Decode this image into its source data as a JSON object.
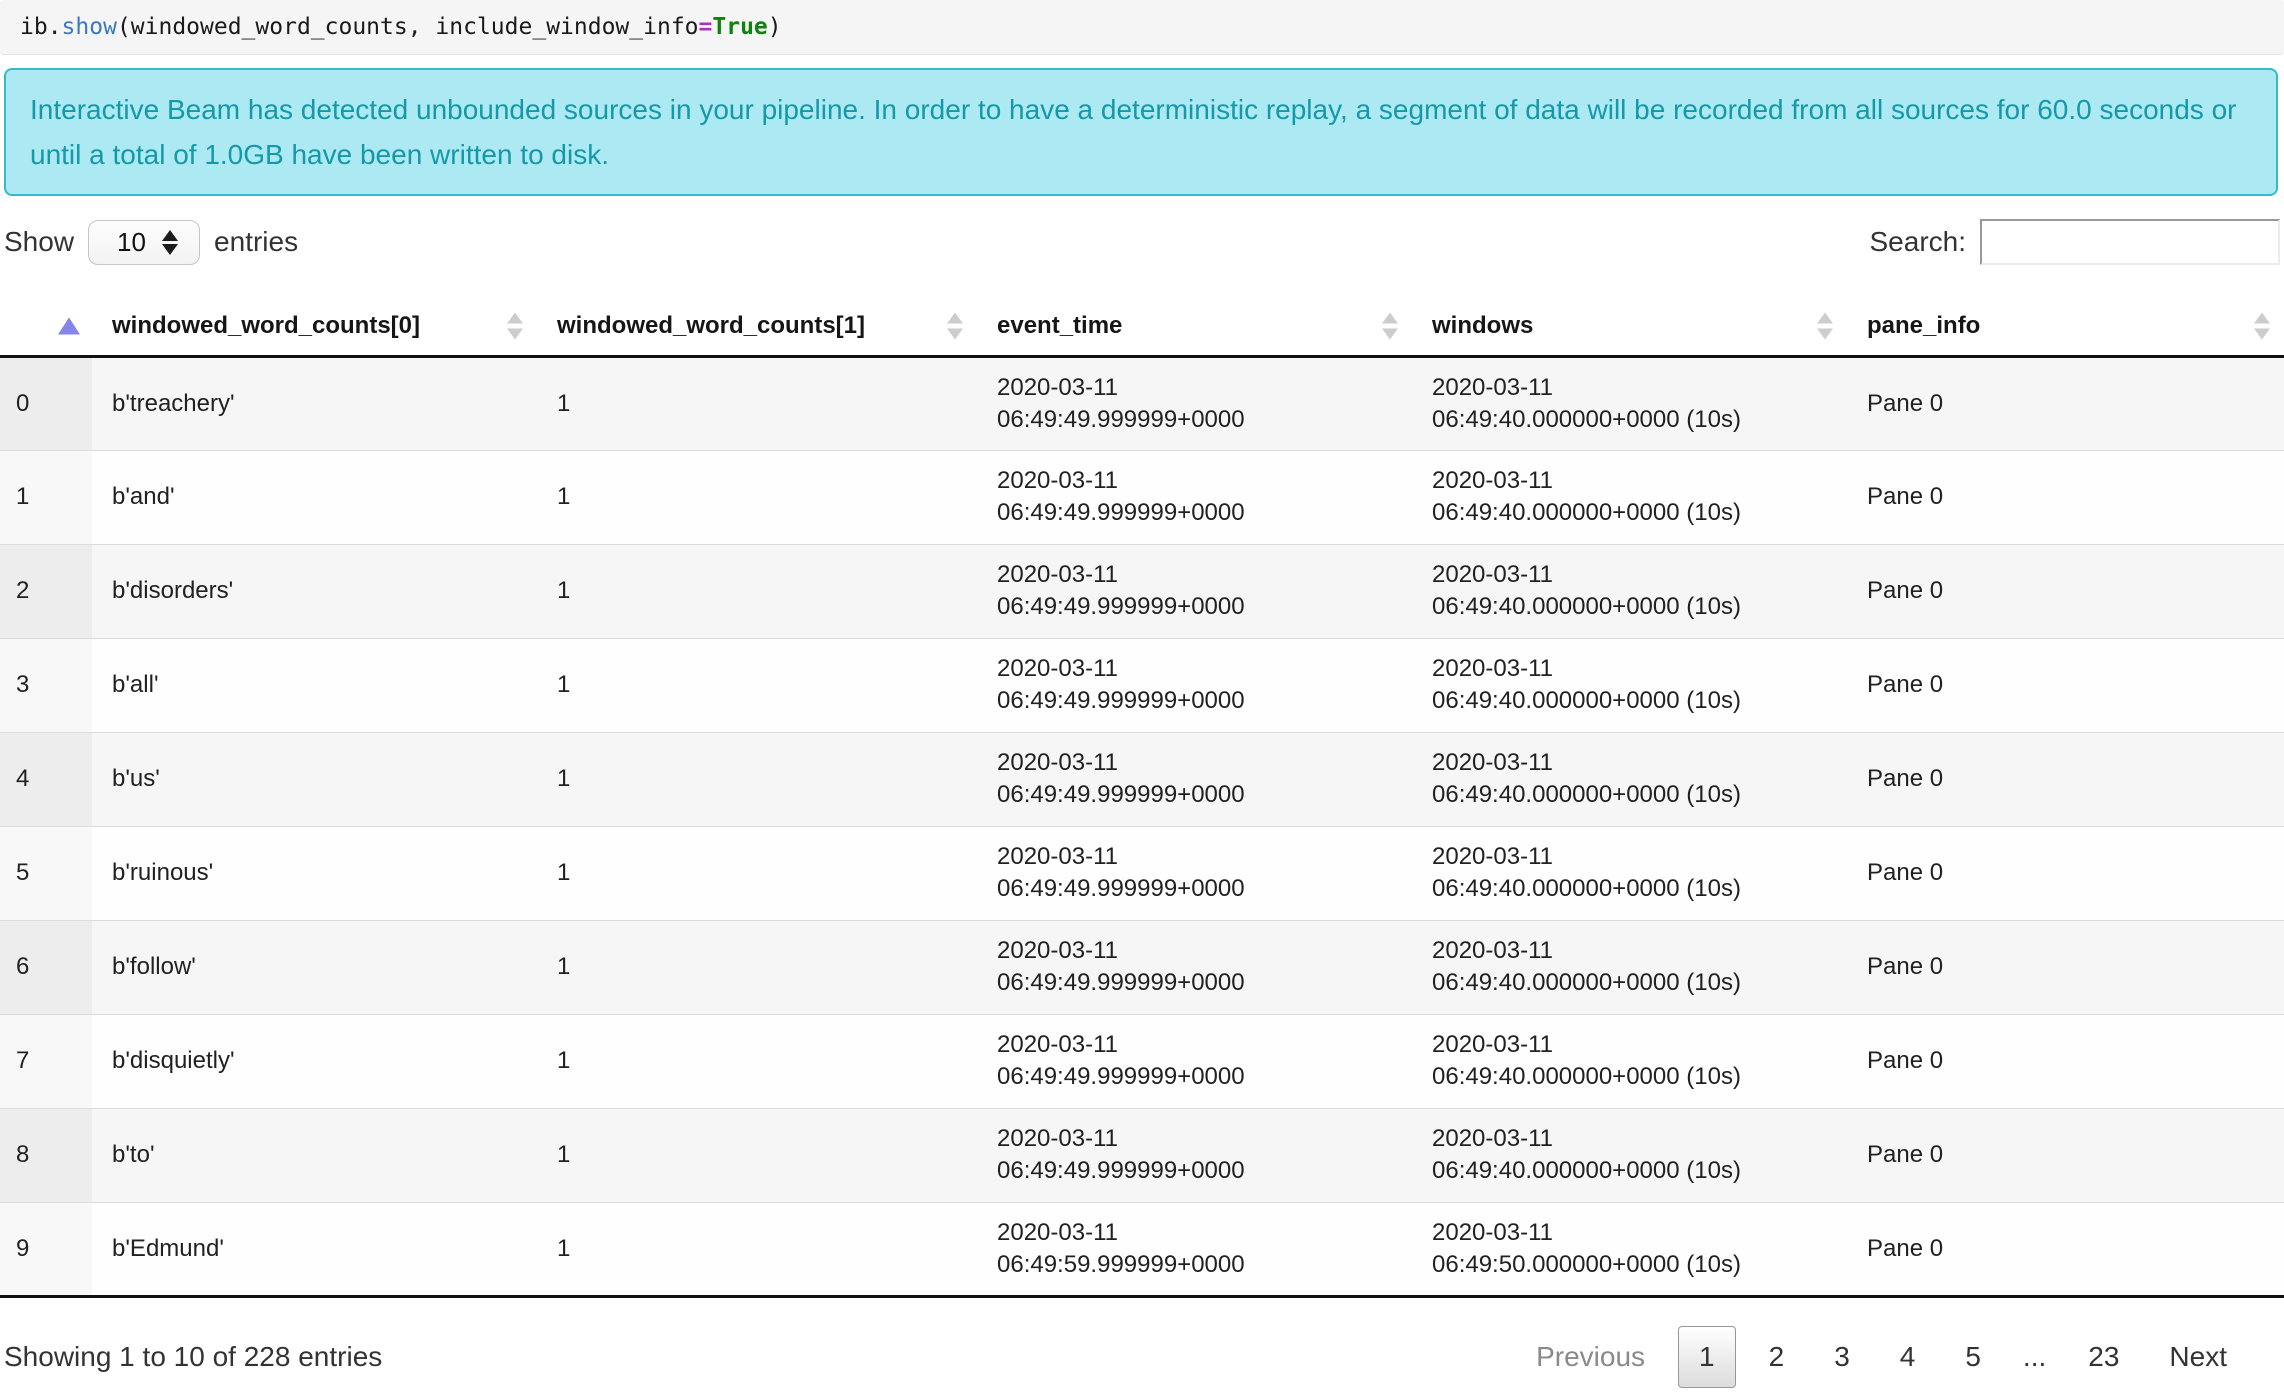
{
  "code_cell": {
    "tokens": [
      {
        "text": "ib.",
        "type": "plain"
      },
      {
        "text": "show",
        "type": "function"
      },
      {
        "text": "(windowed_word_counts, include_window_info",
        "type": "plain"
      },
      {
        "text": "=",
        "type": "operator"
      },
      {
        "text": "True",
        "type": "keyword"
      },
      {
        "text": ")",
        "type": "plain"
      }
    ]
  },
  "banner": {
    "text": "Interactive Beam has detected unbounded sources in your pipeline. In order to have a deterministic replay, a segment of data will be recorded from all sources for 60.0 seconds or until a total of 1.0GB have been written to disk.",
    "bg_color": "#ace9f2",
    "border_color": "#35bac9",
    "text_color": "#1599a8"
  },
  "controls": {
    "show_label": "Show",
    "page_size": "10",
    "entries_label": "entries",
    "search_label": "Search:",
    "search_value": ""
  },
  "table": {
    "columns": [
      "",
      "windowed_word_counts[0]",
      "windowed_word_counts[1]",
      "event_time",
      "windows",
      "pane_info"
    ],
    "sorted_column": 0,
    "sort_direction": "asc",
    "sort_asc_color": "#8585ea",
    "rows": [
      {
        "index": "0",
        "word": "b'treachery'",
        "count": "1",
        "event_time": "2020-03-11\n06:49:49.999999+0000",
        "windows": "2020-03-11\n06:49:40.000000+0000 (10s)",
        "pane_info": "Pane 0"
      },
      {
        "index": "1",
        "word": "b'and'",
        "count": "1",
        "event_time": "2020-03-11\n06:49:49.999999+0000",
        "windows": "2020-03-11\n06:49:40.000000+0000 (10s)",
        "pane_info": "Pane 0"
      },
      {
        "index": "2",
        "word": "b'disorders'",
        "count": "1",
        "event_time": "2020-03-11\n06:49:49.999999+0000",
        "windows": "2020-03-11\n06:49:40.000000+0000 (10s)",
        "pane_info": "Pane 0"
      },
      {
        "index": "3",
        "word": "b'all'",
        "count": "1",
        "event_time": "2020-03-11\n06:49:49.999999+0000",
        "windows": "2020-03-11\n06:49:40.000000+0000 (10s)",
        "pane_info": "Pane 0"
      },
      {
        "index": "4",
        "word": "b'us'",
        "count": "1",
        "event_time": "2020-03-11\n06:49:49.999999+0000",
        "windows": "2020-03-11\n06:49:40.000000+0000 (10s)",
        "pane_info": "Pane 0"
      },
      {
        "index": "5",
        "word": "b'ruinous'",
        "count": "1",
        "event_time": "2020-03-11\n06:49:49.999999+0000",
        "windows": "2020-03-11\n06:49:40.000000+0000 (10s)",
        "pane_info": "Pane 0"
      },
      {
        "index": "6",
        "word": "b'follow'",
        "count": "1",
        "event_time": "2020-03-11\n06:49:49.999999+0000",
        "windows": "2020-03-11\n06:49:40.000000+0000 (10s)",
        "pane_info": "Pane 0"
      },
      {
        "index": "7",
        "word": "b'disquietly'",
        "count": "1",
        "event_time": "2020-03-11\n06:49:49.999999+0000",
        "windows": "2020-03-11\n06:49:40.000000+0000 (10s)",
        "pane_info": "Pane 0"
      },
      {
        "index": "8",
        "word": "b'to'",
        "count": "1",
        "event_time": "2020-03-11\n06:49:49.999999+0000",
        "windows": "2020-03-11\n06:49:40.000000+0000 (10s)",
        "pane_info": "Pane 0"
      },
      {
        "index": "9",
        "word": "b'Edmund'",
        "count": "1",
        "event_time": "2020-03-11\n06:49:59.999999+0000",
        "windows": "2020-03-11\n06:49:50.000000+0000 (10s)",
        "pane_info": "Pane 0"
      }
    ]
  },
  "footer": {
    "summary": "Showing 1 to 10 of 228 entries",
    "pagination": [
      "Previous",
      "1",
      "2",
      "3",
      "4",
      "5",
      "...",
      "23",
      "Next"
    ],
    "current_page": "1",
    "disabled_buttons": [
      "Previous"
    ]
  }
}
